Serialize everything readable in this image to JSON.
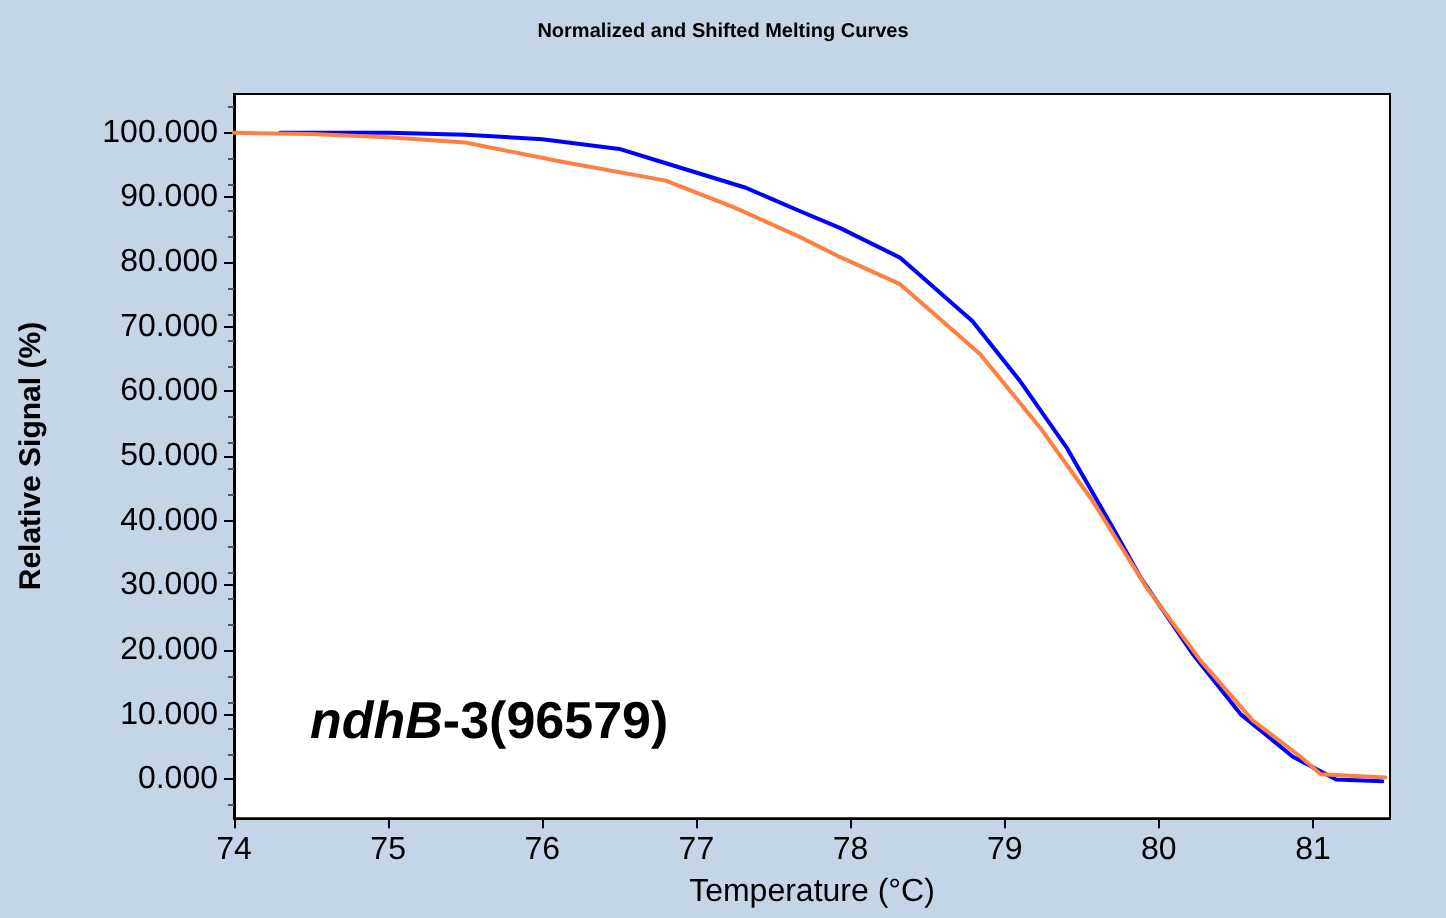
{
  "chart_data": {
    "type": "line",
    "title": "Normalized and Shifted Melting Curves",
    "xlabel": "Temperature (°C)",
    "ylabel": "Relative Signal (%)",
    "annotations": [
      "ndhB-3(96579)"
    ],
    "series": [
      {
        "color": "#0000ff",
        "x": [
          74.3,
          75,
          75.5,
          76,
          76.5,
          76.76,
          77.32,
          77.67,
          77.93,
          78.32,
          78.79,
          79.1,
          79.4,
          79.7,
          79.88,
          80.22,
          80.53,
          80.87,
          81.15,
          81.45
        ],
        "values": [
          100,
          100,
          99.7,
          99,
          97.5,
          95.6,
          91.5,
          87.9,
          85.3,
          80.7,
          70.9,
          61.6,
          51.4,
          39,
          31.3,
          19.4,
          10.1,
          3.5,
          0,
          -0.3
        ]
      },
      {
        "color": "#ff7f3f",
        "x": [
          74,
          74.5,
          75,
          75.5,
          76.11,
          76.8,
          77.24,
          77.67,
          77.93,
          78.32,
          78.84,
          79.23,
          79.57,
          79.92,
          80.27,
          80.61,
          80.92,
          81.05,
          81.47
        ],
        "values": [
          100,
          99.8,
          99.3,
          98.5,
          95.6,
          92.6,
          88.5,
          83.9,
          80.8,
          76.6,
          65.8,
          54.4,
          43.1,
          29.7,
          18.4,
          9.1,
          3.5,
          0.8,
          0.3
        ]
      }
    ],
    "xlim": [
      74,
      81.5
    ],
    "xticks": [
      74,
      75,
      76,
      77,
      78,
      79,
      80,
      81
    ],
    "ylim": [
      -6,
      106
    ],
    "yticks": [
      {
        "value": 0,
        "label": "0.000"
      },
      {
        "value": 10,
        "label": "10.000"
      },
      {
        "value": 20,
        "label": "20.000"
      },
      {
        "value": 30,
        "label": "30.000"
      },
      {
        "value": 40,
        "label": "40.000"
      },
      {
        "value": 50,
        "label": "50.000"
      },
      {
        "value": 60,
        "label": "60.000"
      },
      {
        "value": 70,
        "label": "70.000"
      },
      {
        "value": 80,
        "label": "80.000"
      },
      {
        "value": 90,
        "label": "90.000"
      },
      {
        "value": 100,
        "label": "100.000"
      }
    ],
    "grid": false,
    "marker": "none",
    "line_style": "solid"
  }
}
